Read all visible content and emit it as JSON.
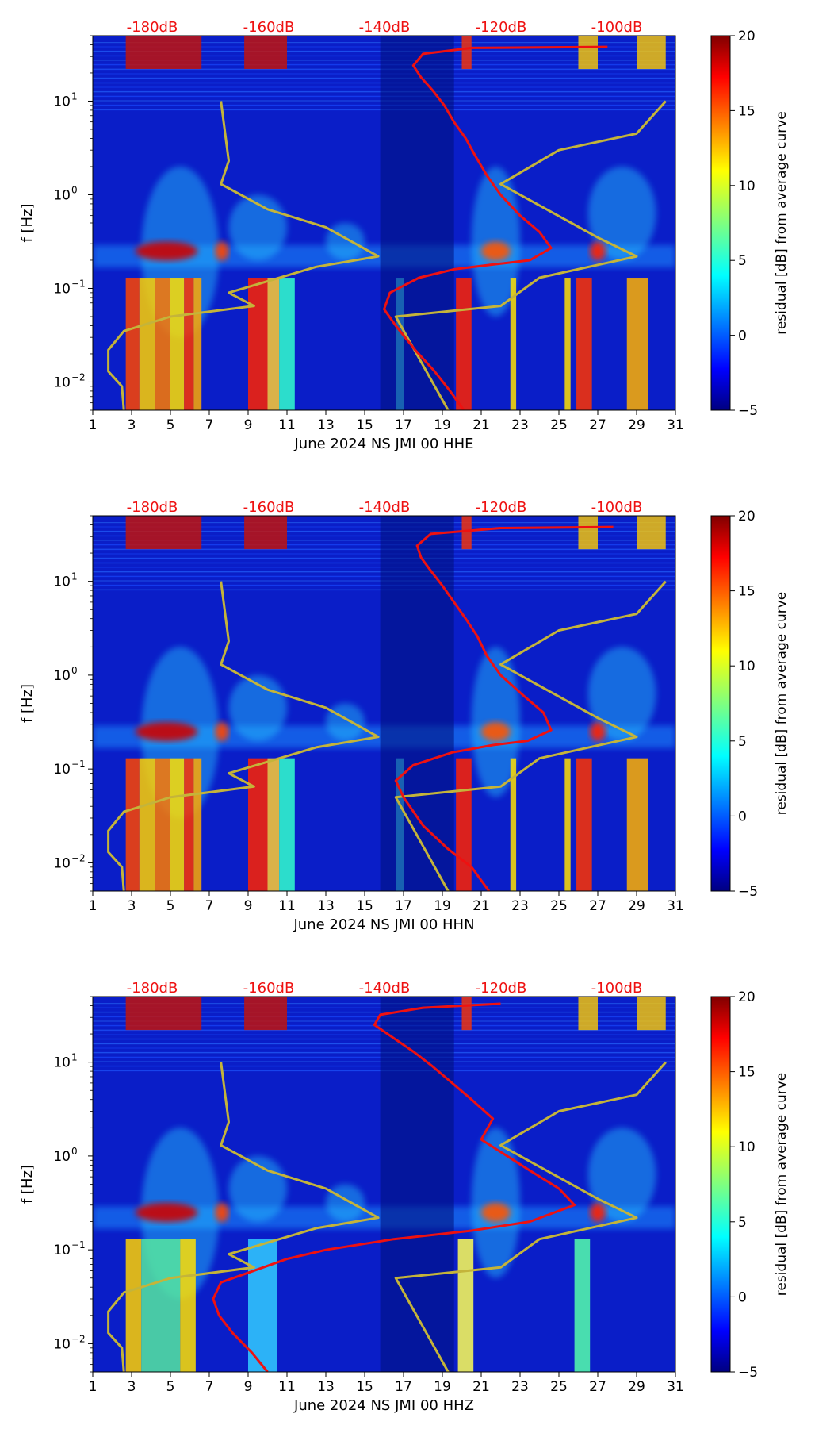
{
  "chart_data": [
    {
      "type": "heatmap",
      "xlabel": "June 2024 NS JMI 00 HHE",
      "ylabel": "f [Hz]",
      "x_ticks": [
        "1",
        "3",
        "5",
        "7",
        "9",
        "11",
        "13",
        "15",
        "17",
        "19",
        "21",
        "23",
        "25",
        "27",
        "29",
        "31"
      ],
      "xlim": [
        1,
        31
      ],
      "ylim": [
        0.005,
        50
      ],
      "y_scale": "log",
      "y_ticks": [
        {
          "base": "10",
          "exp": "1"
        },
        {
          "base": "10",
          "exp": "0"
        },
        {
          "base": "10",
          "exp": "−1"
        },
        {
          "base": "10",
          "exp": "−2"
        }
      ],
      "top_labels": [
        "-180dB",
        "-160dB",
        "-140dB",
        "-120dB",
        "-100dB"
      ],
      "colorbar": {
        "label": "residual [dB] from average curve",
        "ticks": [
          "20",
          "15",
          "10",
          "5",
          "0",
          "−5"
        ],
        "range": [
          -5,
          20
        ]
      },
      "red_curve": [
        {
          "x": 20.1,
          "f": 0.005
        },
        {
          "x": 19.4,
          "f": 0.008
        },
        {
          "x": 18.6,
          "f": 0.013
        },
        {
          "x": 17.6,
          "f": 0.022
        },
        {
          "x": 16.6,
          "f": 0.04
        },
        {
          "x": 16.0,
          "f": 0.06
        },
        {
          "x": 16.3,
          "f": 0.09
        },
        {
          "x": 17.8,
          "f": 0.13
        },
        {
          "x": 19.6,
          "f": 0.16
        },
        {
          "x": 21.6,
          "f": 0.18
        },
        {
          "x": 23.5,
          "f": 0.2
        },
        {
          "x": 24.6,
          "f": 0.27
        },
        {
          "x": 24.0,
          "f": 0.4
        },
        {
          "x": 23.0,
          "f": 0.6
        },
        {
          "x": 22.0,
          "f": 1.0
        },
        {
          "x": 21.3,
          "f": 1.6
        },
        {
          "x": 20.7,
          "f": 2.6
        },
        {
          "x": 20.2,
          "f": 4.0
        },
        {
          "x": 19.6,
          "f": 6.0
        },
        {
          "x": 19.1,
          "f": 9.0
        },
        {
          "x": 18.5,
          "f": 13
        },
        {
          "x": 17.9,
          "f": 18
        },
        {
          "x": 17.5,
          "f": 24
        },
        {
          "x": 18.0,
          "f": 32
        },
        {
          "x": 20.5,
          "f": 37
        },
        {
          "x": 27.5,
          "f": 38
        }
      ],
      "olive_curve": [
        {
          "x": 2.6,
          "f": 0.005
        },
        {
          "x": 2.5,
          "f": 0.009
        },
        {
          "x": 1.8,
          "f": 0.013
        },
        {
          "x": 1.8,
          "f": 0.022
        },
        {
          "x": 2.6,
          "f": 0.035
        },
        {
          "x": 5.0,
          "f": 0.05
        },
        {
          "x": 9.3,
          "f": 0.065
        },
        {
          "x": 8.0,
          "f": 0.09
        },
        {
          "x": 12.5,
          "f": 0.17
        },
        {
          "x": 15.7,
          "f": 0.22
        },
        {
          "x": 13.0,
          "f": 0.45
        },
        {
          "x": 10.0,
          "f": 0.7
        },
        {
          "x": 7.6,
          "f": 1.3
        },
        {
          "x": 8.0,
          "f": 2.3
        },
        {
          "x": 7.6,
          "f": 10.0
        }
      ],
      "olive_curve2": [
        {
          "x": 19.3,
          "f": 0.005
        },
        {
          "x": 16.6,
          "f": 0.05
        },
        {
          "x": 22.0,
          "f": 0.065
        },
        {
          "x": 24.0,
          "f": 0.13
        },
        {
          "x": 29.0,
          "f": 0.22
        },
        {
          "x": 27.0,
          "f": 0.35
        },
        {
          "x": 22.0,
          "f": 1.3
        },
        {
          "x": 25.0,
          "f": 3.0
        },
        {
          "x": 29.0,
          "f": 4.5
        },
        {
          "x": 30.5,
          "f": 10.0
        }
      ]
    },
    {
      "type": "heatmap",
      "xlabel": "June 2024 NS JMI 00 HHN",
      "ylabel": "f [Hz]",
      "x_ticks": [
        "1",
        "3",
        "5",
        "7",
        "9",
        "11",
        "13",
        "15",
        "17",
        "19",
        "21",
        "23",
        "25",
        "27",
        "29",
        "31"
      ],
      "xlim": [
        1,
        31
      ],
      "ylim": [
        0.005,
        50
      ],
      "y_scale": "log",
      "y_ticks": [
        {
          "base": "10",
          "exp": "1"
        },
        {
          "base": "10",
          "exp": "0"
        },
        {
          "base": "10",
          "exp": "−1"
        },
        {
          "base": "10",
          "exp": "−2"
        }
      ],
      "top_labels": [
        "-180dB",
        "-160dB",
        "-140dB",
        "-120dB",
        "-100dB"
      ],
      "colorbar": {
        "label": "residual [dB] from average curve",
        "ticks": [
          "20",
          "15",
          "10",
          "5",
          "0",
          "−5"
        ],
        "range": [
          -5,
          20
        ]
      },
      "red_curve": [
        {
          "x": 21.4,
          "f": 0.005
        },
        {
          "x": 20.5,
          "f": 0.009
        },
        {
          "x": 19.3,
          "f": 0.014
        },
        {
          "x": 18.0,
          "f": 0.025
        },
        {
          "x": 17.0,
          "f": 0.05
        },
        {
          "x": 16.6,
          "f": 0.075
        },
        {
          "x": 17.5,
          "f": 0.11
        },
        {
          "x": 19.5,
          "f": 0.15
        },
        {
          "x": 21.6,
          "f": 0.18
        },
        {
          "x": 23.4,
          "f": 0.2
        },
        {
          "x": 24.6,
          "f": 0.26
        },
        {
          "x": 24.2,
          "f": 0.4
        },
        {
          "x": 23.2,
          "f": 0.6
        },
        {
          "x": 22.0,
          "f": 1.0
        },
        {
          "x": 21.3,
          "f": 1.6
        },
        {
          "x": 20.8,
          "f": 2.6
        },
        {
          "x": 20.2,
          "f": 4.0
        },
        {
          "x": 19.6,
          "f": 6.0
        },
        {
          "x": 19.0,
          "f": 9.0
        },
        {
          "x": 18.4,
          "f": 13
        },
        {
          "x": 17.9,
          "f": 18
        },
        {
          "x": 17.7,
          "f": 24
        },
        {
          "x": 18.4,
          "f": 32
        },
        {
          "x": 22.0,
          "f": 37
        },
        {
          "x": 27.8,
          "f": 38
        }
      ],
      "olive_curve": [
        {
          "x": 2.6,
          "f": 0.005
        },
        {
          "x": 2.5,
          "f": 0.009
        },
        {
          "x": 1.8,
          "f": 0.013
        },
        {
          "x": 1.8,
          "f": 0.022
        },
        {
          "x": 2.6,
          "f": 0.035
        },
        {
          "x": 5.0,
          "f": 0.05
        },
        {
          "x": 9.3,
          "f": 0.065
        },
        {
          "x": 8.0,
          "f": 0.09
        },
        {
          "x": 12.5,
          "f": 0.17
        },
        {
          "x": 15.7,
          "f": 0.22
        },
        {
          "x": 13.0,
          "f": 0.45
        },
        {
          "x": 10.0,
          "f": 0.7
        },
        {
          "x": 7.6,
          "f": 1.3
        },
        {
          "x": 8.0,
          "f": 2.3
        },
        {
          "x": 7.6,
          "f": 10.0
        }
      ],
      "olive_curve2": [
        {
          "x": 19.3,
          "f": 0.005
        },
        {
          "x": 16.6,
          "f": 0.05
        },
        {
          "x": 22.0,
          "f": 0.065
        },
        {
          "x": 24.0,
          "f": 0.13
        },
        {
          "x": 29.0,
          "f": 0.22
        },
        {
          "x": 27.0,
          "f": 0.35
        },
        {
          "x": 22.0,
          "f": 1.3
        },
        {
          "x": 25.0,
          "f": 3.0
        },
        {
          "x": 29.0,
          "f": 4.5
        },
        {
          "x": 30.5,
          "f": 10.0
        }
      ]
    },
    {
      "type": "heatmap",
      "xlabel": "June 2024 NS JMI 00 HHZ",
      "ylabel": "f [Hz]",
      "x_ticks": [
        "1",
        "3",
        "5",
        "7",
        "9",
        "11",
        "13",
        "15",
        "17",
        "19",
        "21",
        "23",
        "25",
        "27",
        "29",
        "31"
      ],
      "xlim": [
        1,
        31
      ],
      "ylim": [
        0.005,
        50
      ],
      "y_scale": "log",
      "y_ticks": [
        {
          "base": "10",
          "exp": "1"
        },
        {
          "base": "10",
          "exp": "0"
        },
        {
          "base": "10",
          "exp": "−1"
        },
        {
          "base": "10",
          "exp": "−2"
        }
      ],
      "top_labels": [
        "-180dB",
        "-160dB",
        "-140dB",
        "-120dB",
        "-100dB"
      ],
      "colorbar": {
        "label": "residual [dB] from average curve",
        "ticks": [
          "20",
          "15",
          "10",
          "5",
          "0",
          "−5"
        ],
        "range": [
          -5,
          20
        ]
      },
      "red_curve": [
        {
          "x": 10.0,
          "f": 0.005
        },
        {
          "x": 9.2,
          "f": 0.008
        },
        {
          "x": 8.2,
          "f": 0.013
        },
        {
          "x": 7.5,
          "f": 0.02
        },
        {
          "x": 7.2,
          "f": 0.03
        },
        {
          "x": 7.6,
          "f": 0.045
        },
        {
          "x": 9.3,
          "f": 0.06
        },
        {
          "x": 11.0,
          "f": 0.08
        },
        {
          "x": 13.0,
          "f": 0.1
        },
        {
          "x": 16.5,
          "f": 0.13
        },
        {
          "x": 20.5,
          "f": 0.16
        },
        {
          "x": 23.5,
          "f": 0.2
        },
        {
          "x": 25.8,
          "f": 0.3
        },
        {
          "x": 25.0,
          "f": 0.45
        },
        {
          "x": 23.5,
          "f": 0.7
        },
        {
          "x": 21.0,
          "f": 1.5
        },
        {
          "x": 21.6,
          "f": 2.5
        },
        {
          "x": 20.5,
          "f": 4.0
        },
        {
          "x": 19.5,
          "f": 6.0
        },
        {
          "x": 18.5,
          "f": 9.0
        },
        {
          "x": 17.5,
          "f": 13
        },
        {
          "x": 16.5,
          "f": 18
        },
        {
          "x": 15.5,
          "f": 25
        },
        {
          "x": 15.8,
          "f": 32
        },
        {
          "x": 18.0,
          "f": 38
        },
        {
          "x": 22.0,
          "f": 42
        }
      ],
      "olive_curve": [
        {
          "x": 2.6,
          "f": 0.005
        },
        {
          "x": 2.5,
          "f": 0.009
        },
        {
          "x": 1.8,
          "f": 0.013
        },
        {
          "x": 1.8,
          "f": 0.022
        },
        {
          "x": 2.6,
          "f": 0.035
        },
        {
          "x": 5.0,
          "f": 0.05
        },
        {
          "x": 9.3,
          "f": 0.065
        },
        {
          "x": 8.0,
          "f": 0.09
        },
        {
          "x": 12.5,
          "f": 0.17
        },
        {
          "x": 15.7,
          "f": 0.22
        },
        {
          "x": 13.0,
          "f": 0.45
        },
        {
          "x": 10.0,
          "f": 0.7
        },
        {
          "x": 7.6,
          "f": 1.3
        },
        {
          "x": 8.0,
          "f": 2.3
        },
        {
          "x": 7.6,
          "f": 10.0
        }
      ],
      "olive_curve2": [
        {
          "x": 19.3,
          "f": 0.005
        },
        {
          "x": 16.6,
          "f": 0.05
        },
        {
          "x": 22.0,
          "f": 0.065
        },
        {
          "x": 24.0,
          "f": 0.13
        },
        {
          "x": 29.0,
          "f": 0.22
        },
        {
          "x": 27.0,
          "f": 0.35
        },
        {
          "x": 22.0,
          "f": 1.3
        },
        {
          "x": 25.0,
          "f": 3.0
        },
        {
          "x": 29.0,
          "f": 4.5
        },
        {
          "x": 30.5,
          "f": 10.0
        }
      ]
    }
  ],
  "colors": {
    "red_curve": "#ee1111",
    "olive_curve": "#c4b43a",
    "top_label": "#ee1111"
  }
}
